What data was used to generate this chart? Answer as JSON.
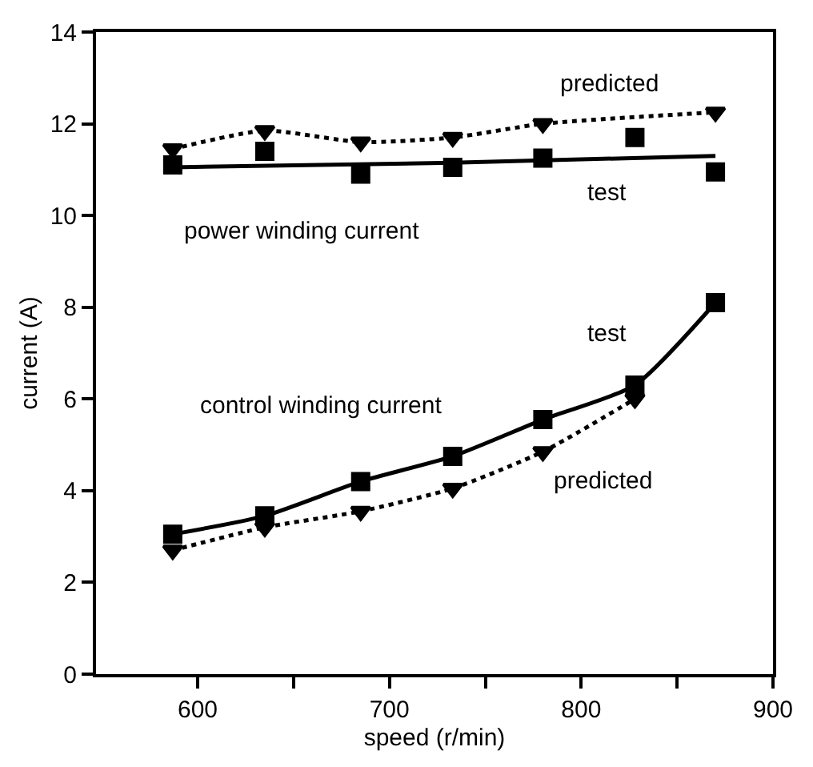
{
  "chart_data": {
    "type": "line",
    "xlabel": "speed (r/min)",
    "ylabel": "current (A)",
    "xlim": [
      547,
      900
    ],
    "xticks": [
      600,
      {
        "value": 650,
        "label": null
      },
      700,
      {
        "value": 750,
        "label": null
      },
      800,
      {
        "value": 850,
        "label": null
      },
      900
    ],
    "ylim": [
      0,
      14
    ],
    "yticks": [
      0,
      2,
      4,
      6,
      8,
      10,
      12,
      14
    ],
    "series": [
      {
        "type": "scatter",
        "color": "#000000",
        "marker": "square",
        "x": [
          587,
          635,
          685,
          733,
          780,
          828,
          870
        ],
        "values": [
          11.1,
          11.4,
          10.9,
          11.05,
          11.25,
          11.7,
          10.95
        ]
      },
      {
        "color": "#000000",
        "marker": "none",
        "line_style": "solid",
        "x": [
          587,
          733,
          870
        ],
        "values": [
          11.05,
          11.15,
          11.3
        ]
      },
      {
        "color": "#000000",
        "marker": "triangle",
        "line_style": "dotted",
        "x": [
          587,
          635,
          685,
          733,
          780,
          870
        ],
        "values": [
          11.45,
          11.85,
          11.6,
          11.7,
          12.0,
          12.25
        ]
      },
      {
        "color": "#000000",
        "marker": "square",
        "line_style": "solid",
        "x": [
          587,
          635,
          685,
          733,
          780,
          828,
          870
        ],
        "values": [
          3.05,
          3.45,
          4.2,
          4.75,
          5.55,
          6.3,
          8.1
        ]
      },
      {
        "color": "#000000",
        "marker": "triangle",
        "line_style": "dotted",
        "x": [
          587,
          635,
          685,
          733,
          780,
          828
        ],
        "values": [
          2.7,
          3.2,
          3.55,
          4.05,
          4.85,
          6.0
        ]
      }
    ],
    "annotations": [
      "predicted",
      "test",
      "power winding current",
      "test",
      "control winding current",
      "predicted"
    ]
  }
}
